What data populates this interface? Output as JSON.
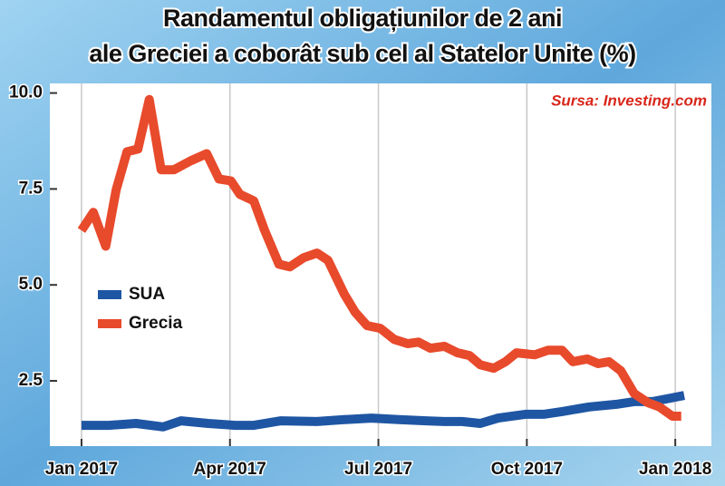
{
  "chart_data": {
    "type": "line",
    "title": [
      "Randamentul obligațiunilor de 2 ani",
      "ale Greciei a coborât sub cel al Statelor Unite (%)"
    ],
    "source": "Sursa: Investing.com",
    "xlim": [
      -0.64,
      12.73
    ],
    "ylim": [
      0.8,
      10.25
    ],
    "xticks": [
      {
        "value": 0,
        "label": "Jan 2017"
      },
      {
        "value": 3,
        "label": "Apr 2017"
      },
      {
        "value": 6,
        "label": "Jul 2017"
      },
      {
        "value": 9,
        "label": "Oct 2017"
      },
      {
        "value": 12,
        "label": "Jan 2018"
      }
    ],
    "yticks": [
      2.5,
      {
        "value": 5,
        "label": "5.0"
      },
      7.5,
      {
        "value": 10,
        "label": "10.0"
      }
    ],
    "grid": true,
    "series": [
      {
        "name": "SUA",
        "color": "#1f56a3",
        "x": [
          0,
          0.55,
          1.1,
          1.65,
          2.01,
          2.56,
          3.11,
          3.48,
          4.03,
          4.76,
          5.31,
          5.86,
          6.41,
          6.96,
          7.33,
          7.69,
          8.06,
          8.42,
          8.97,
          9.34,
          9.71,
          10.26,
          10.81,
          11.17,
          11.54,
          11.9,
          12.18
        ],
        "values": [
          1.34,
          1.34,
          1.39,
          1.3,
          1.46,
          1.39,
          1.34,
          1.34,
          1.46,
          1.44,
          1.49,
          1.53,
          1.49,
          1.46,
          1.44,
          1.44,
          1.39,
          1.53,
          1.63,
          1.63,
          1.7,
          1.82,
          1.89,
          1.96,
          1.96,
          2.05,
          2.12
        ]
      },
      {
        "name": "Grecia",
        "color": "#e84a2c",
        "x": [
          0,
          0.24,
          0.49,
          0.7,
          0.92,
          1.14,
          1.37,
          1.61,
          1.87,
          2.2,
          2.53,
          2.78,
          3.02,
          3.2,
          3.48,
          3.7,
          3.99,
          4.21,
          4.49,
          4.76,
          4.98,
          5.31,
          5.53,
          5.77,
          6.04,
          6.32,
          6.59,
          6.81,
          7.05,
          7.33,
          7.6,
          7.84,
          8.06,
          8.33,
          8.57,
          8.79,
          9.16,
          9.43,
          9.71,
          9.93,
          10.22,
          10.44,
          10.66,
          10.9,
          11.17,
          11.45,
          11.68,
          11.94,
          12.12
        ],
        "values": [
          6.42,
          6.89,
          6.01,
          7.48,
          8.47,
          8.54,
          9.83,
          8.0,
          8.0,
          8.23,
          8.42,
          7.76,
          7.71,
          7.36,
          7.19,
          6.42,
          5.54,
          5.47,
          5.71,
          5.83,
          5.64,
          4.76,
          4.29,
          3.94,
          3.87,
          3.58,
          3.47,
          3.51,
          3.35,
          3.4,
          3.23,
          3.16,
          2.92,
          2.83,
          3.0,
          3.23,
          3.18,
          3.3,
          3.3,
          3.0,
          3.07,
          2.95,
          3.0,
          2.76,
          2.17,
          1.93,
          1.82,
          1.58,
          1.58
        ]
      }
    ]
  }
}
